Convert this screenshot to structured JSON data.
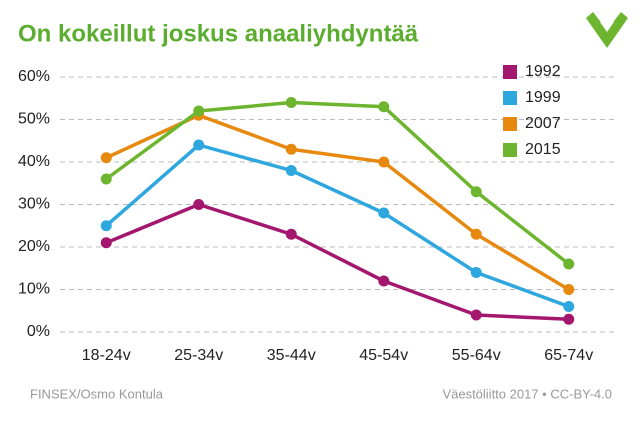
{
  "chart_data": {
    "type": "line",
    "title": "On kokeillut joskus anaaliyhdyntää",
    "source": "FINSEX/Osmo Kontula",
    "credit": "Väestöliitto 2017 • CC-BY-4.0",
    "categories": [
      "18-24v",
      "25-34v",
      "35-44v",
      "45-54v",
      "55-64v",
      "65-74v"
    ],
    "series": [
      {
        "name": "1992",
        "color": "#a3176f",
        "values": [
          21,
          30,
          23,
          12,
          4,
          3
        ]
      },
      {
        "name": "1999",
        "color": "#2ea7df",
        "values": [
          25,
          44,
          38,
          28,
          14,
          6
        ]
      },
      {
        "name": "2007",
        "color": "#e8890f",
        "values": [
          41,
          51,
          43,
          40,
          23,
          10
        ]
      },
      {
        "name": "2015",
        "color": "#6db52f",
        "values": [
          36,
          52,
          54,
          53,
          33,
          16
        ]
      }
    ],
    "ylim": [
      0,
      60
    ],
    "yticks": [
      {
        "value": 0,
        "label": "0%"
      },
      {
        "value": 10,
        "label": "10%"
      },
      {
        "value": 20,
        "label": "20%"
      },
      {
        "value": 30,
        "label": "30%"
      },
      {
        "value": 40,
        "label": "40%"
      },
      {
        "value": 50,
        "label": "50%"
      },
      {
        "value": 60,
        "label": "60%"
      }
    ],
    "grid": true,
    "legend": "top right"
  }
}
